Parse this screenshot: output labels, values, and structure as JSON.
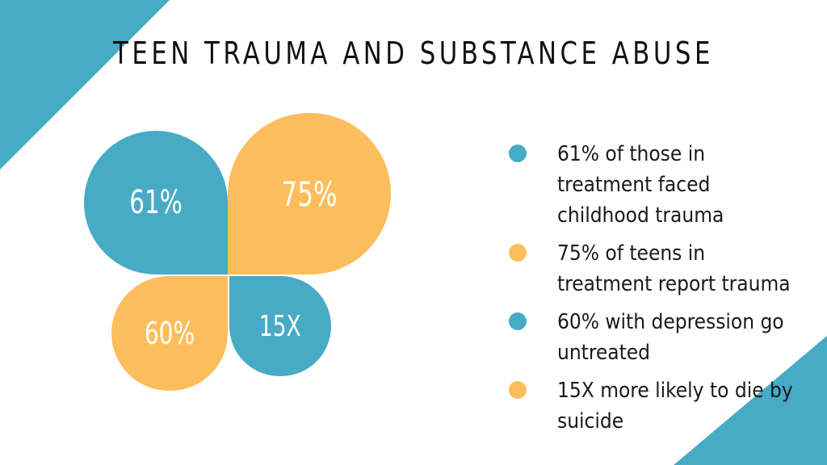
{
  "title": "TEEN TRAUMA AND SUBSTANCE ABUSE",
  "colors": {
    "blue": "#47abc6",
    "orange": "#fcbe5c",
    "background": "#ffffff",
    "text": "#111111"
  },
  "petals": {
    "p61": {
      "label": "61%",
      "color": "blue"
    },
    "p75": {
      "label": "75%",
      "color": "orange"
    },
    "p60": {
      "label": "60%",
      "color": "orange"
    },
    "p15x": {
      "label": "15X",
      "color": "blue"
    }
  },
  "legend": [
    {
      "text": "61% of those in treatment faced childhood trauma",
      "color": "blue"
    },
    {
      "text": "75% of teens in treatment report trauma",
      "color": "orange"
    },
    {
      "text": "60% with depression go untreated",
      "color": "blue"
    },
    {
      "text": "15X more likely to die by suicide",
      "color": "orange"
    }
  ]
}
